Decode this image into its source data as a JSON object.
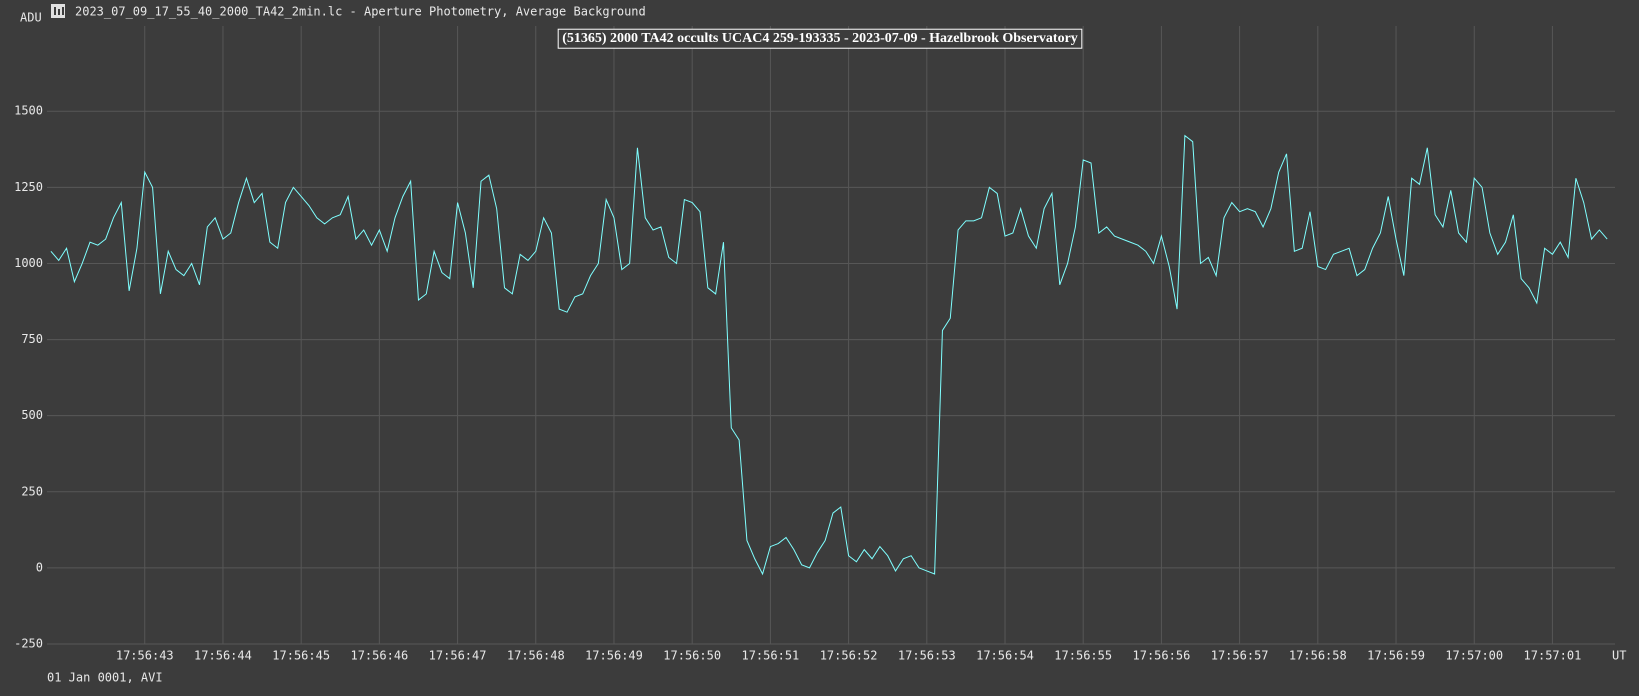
{
  "window_title": "2023_07_09_17_55_40_2000_TA42_2min.lc - Aperture Photometry, Average Background",
  "footer": "01 Jan 0001, AVI",
  "chart_data": {
    "type": "line",
    "title": "(51365) 2000 TA42 occults UCAC4 259-193335 - 2023-07-09 - Hazelbrook Observatory",
    "ylabel": "ADU",
    "xlabel": "UT",
    "color": "#7fffff",
    "grid": true,
    "xlim": [
      41.75,
      61.8
    ],
    "ylim": [
      -250,
      1780
    ],
    "yticks": [
      -250,
      0,
      250,
      500,
      750,
      1000,
      1250,
      1500
    ],
    "xticks": [
      {
        "value": 43,
        "label": "17:56:43"
      },
      {
        "value": 44,
        "label": "17:56:44"
      },
      {
        "value": 45,
        "label": "17:56:45"
      },
      {
        "value": 46,
        "label": "17:56:46"
      },
      {
        "value": 47,
        "label": "17:56:47"
      },
      {
        "value": 48,
        "label": "17:56:48"
      },
      {
        "value": 49,
        "label": "17:56:49"
      },
      {
        "value": 50,
        "label": "17:56:50"
      },
      {
        "value": 51,
        "label": "17:56:51"
      },
      {
        "value": 52,
        "label": "17:56:52"
      },
      {
        "value": 53,
        "label": "17:56:53"
      },
      {
        "value": 54,
        "label": "17:56:54"
      },
      {
        "value": 55,
        "label": "17:56:55"
      },
      {
        "value": 56,
        "label": "17:56:56"
      },
      {
        "value": 57,
        "label": "17:56:57"
      },
      {
        "value": 58,
        "label": "17:56:58"
      },
      {
        "value": 59,
        "label": "17:56:59"
      },
      {
        "value": 60,
        "label": "17:57:00"
      },
      {
        "value": 61,
        "label": "17:57:01"
      }
    ],
    "x": [
      41.8,
      41.9,
      42.0,
      42.1,
      42.2,
      42.3,
      42.4,
      42.5,
      42.6,
      42.7,
      42.8,
      42.9,
      43.0,
      43.1,
      43.2,
      43.3,
      43.4,
      43.5,
      43.6,
      43.7,
      43.8,
      43.9,
      44.0,
      44.1,
      44.2,
      44.3,
      44.4,
      44.5,
      44.6,
      44.7,
      44.8,
      44.9,
      45.0,
      45.1,
      45.2,
      45.3,
      45.4,
      45.5,
      45.6,
      45.7,
      45.8,
      45.9,
      46.0,
      46.1,
      46.2,
      46.3,
      46.4,
      46.5,
      46.6,
      46.7,
      46.8,
      46.9,
      47.0,
      47.1,
      47.2,
      47.3,
      47.4,
      47.5,
      47.6,
      47.7,
      47.8,
      47.9,
      48.0,
      48.1,
      48.2,
      48.3,
      48.4,
      48.5,
      48.6,
      48.7,
      48.8,
      48.9,
      49.0,
      49.1,
      49.2,
      49.3,
      49.4,
      49.5,
      49.6,
      49.7,
      49.8,
      49.9,
      50.0,
      50.1,
      50.2,
      50.3,
      50.4,
      50.5,
      50.6,
      50.7,
      50.8,
      50.9,
      51.0,
      51.1,
      51.2,
      51.3,
      51.4,
      51.5,
      51.6,
      51.7,
      51.8,
      51.9,
      52.0,
      52.1,
      52.2,
      52.3,
      52.4,
      52.5,
      52.6,
      52.7,
      52.8,
      52.9,
      53.0,
      53.1,
      53.2,
      53.3,
      53.4,
      53.5,
      53.6,
      53.7,
      53.8,
      53.9,
      54.0,
      54.1,
      54.2,
      54.3,
      54.4,
      54.5,
      54.6,
      54.7,
      54.8,
      54.9,
      55.0,
      55.1,
      55.2,
      55.3,
      55.4,
      55.5,
      55.6,
      55.7,
      55.8,
      55.9,
      56.0,
      56.1,
      56.2,
      56.3,
      56.4,
      56.5,
      56.6,
      56.7,
      56.8,
      56.9,
      57.0,
      57.1,
      57.2,
      57.3,
      57.4,
      57.5,
      57.6,
      57.7,
      57.8,
      57.9,
      58.0,
      58.1,
      58.2,
      58.3,
      58.4,
      58.5,
      58.6,
      58.7,
      58.8,
      58.9,
      59.0,
      59.1,
      59.2,
      59.3,
      59.4,
      59.5,
      59.6,
      59.7,
      59.8,
      59.9,
      60.0,
      60.1,
      60.2,
      60.3,
      60.4,
      60.5,
      60.6,
      60.7,
      60.8,
      60.9,
      61.0,
      61.1,
      61.2,
      61.3,
      61.4,
      61.5,
      61.6,
      61.7
    ],
    "values": [
      1040,
      1010,
      1050,
      940,
      1000,
      1070,
      1060,
      1080,
      1150,
      1200,
      910,
      1050,
      1300,
      1250,
      900,
      1040,
      980,
      960,
      1000,
      930,
      1120,
      1150,
      1080,
      1100,
      1200,
      1280,
      1200,
      1230,
      1070,
      1050,
      1200,
      1250,
      1220,
      1190,
      1150,
      1130,
      1150,
      1160,
      1220,
      1080,
      1110,
      1060,
      1110,
      1040,
      1150,
      1220,
      1270,
      880,
      900,
      1040,
      970,
      950,
      1200,
      1100,
      920,
      1270,
      1290,
      1180,
      920,
      900,
      1030,
      1010,
      1040,
      1150,
      1100,
      850,
      840,
      890,
      900,
      960,
      1000,
      1210,
      1150,
      980,
      1000,
      1380,
      1150,
      1110,
      1120,
      1020,
      1000,
      1210,
      1200,
      1170,
      920,
      900,
      1070,
      460,
      420,
      90,
      30,
      -20,
      70,
      80,
      100,
      60,
      10,
      0,
      50,
      90,
      180,
      200,
      40,
      20,
      60,
      30,
      70,
      40,
      -10,
      30,
      40,
      0,
      -10,
      -20,
      780,
      820,
      1110,
      1140,
      1140,
      1150,
      1250,
      1230,
      1090,
      1100,
      1180,
      1090,
      1050,
      1180,
      1230,
      930,
      1000,
      1120,
      1340,
      1330,
      1100,
      1120,
      1090,
      1080,
      1070,
      1060,
      1040,
      1000,
      1090,
      990,
      850,
      1420,
      1400,
      1000,
      1020,
      960,
      1150,
      1200,
      1170,
      1180,
      1170,
      1120,
      1180,
      1300,
      1360,
      1040,
      1050,
      1170,
      990,
      980,
      1030,
      1040,
      1050,
      960,
      980,
      1050,
      1100,
      1220,
      1080,
      960,
      1280,
      1260,
      1380,
      1160,
      1120,
      1240,
      1100,
      1070,
      1280,
      1250,
      1100,
      1030,
      1070,
      1160,
      950,
      920,
      870,
      1050,
      1030,
      1070,
      1020,
      1280,
      1200,
      1080,
      1110,
      1080
    ]
  }
}
